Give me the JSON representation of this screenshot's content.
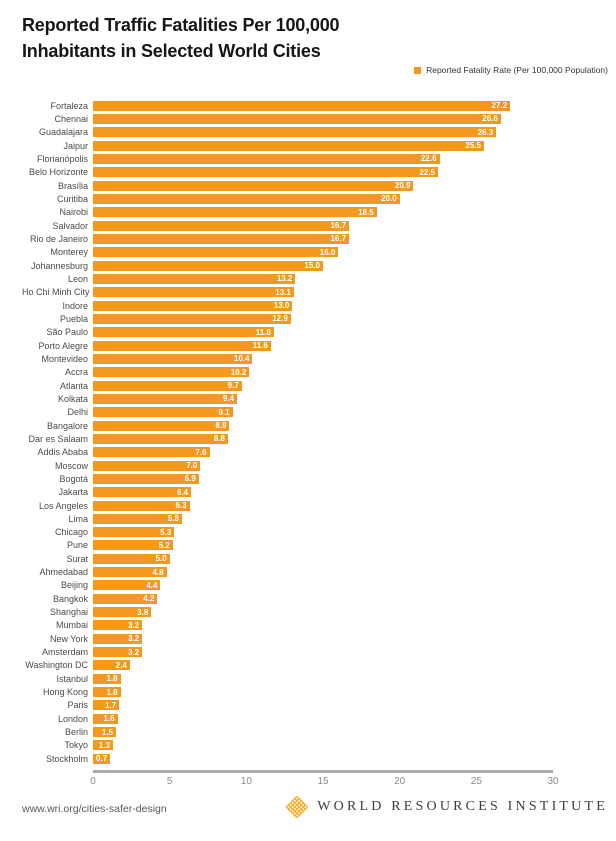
{
  "title": {
    "line1": "Reported Traffic Fatalities Per 100,000",
    "line2": "Inhabitants in Selected World Cities"
  },
  "legend": {
    "label": "Reported Fatality Rate (Per 100,000 Population)",
    "swatch_color": "#F6971E"
  },
  "footer": {
    "url": "www.wri.org/cities-safer-design",
    "org": "WORLD RESOURCES INSTITUTE",
    "logo_color": "#F2B233"
  },
  "chart_data": {
    "type": "bar",
    "orientation": "horizontal",
    "title": "Reported Traffic Fatalities Per 100,000 Inhabitants in Selected World Cities",
    "series_name": "Reported Fatality Rate (Per 100,000 Population)",
    "bar_color": "#F6971E",
    "value_label_color": "#ffffff",
    "xlim": [
      0,
      30
    ],
    "x_ticks": [
      0,
      5,
      10,
      15,
      20,
      25,
      30
    ],
    "grid": false,
    "legend_position": "top-right",
    "categories": [
      "Fortaleza",
      "Chennai",
      "Guadalajara",
      "Jaipur",
      "Florianópolis",
      "Belo Horizonte",
      "Brasília",
      "Curitiba",
      "Nairobi",
      "Salvador",
      "Rio de Janeiro",
      "Monterey",
      "Johannesburg",
      "Leon",
      "Ho Chi Minh City",
      "Indore",
      "Puebla",
      "São Paulo",
      "Porto Alegre",
      "Montevideo",
      "Accra",
      "Atlanta",
      "Kolkata",
      "Delhi",
      "Bangalore",
      "Dar es Salaam",
      "Addis Ababa",
      "Moscow",
      "Bogotá",
      "Jakarta",
      "Los Angeles",
      "Lima",
      "Chicago",
      "Pune",
      "Surat",
      "Ahmedabad",
      "Beijing",
      "Bangkok",
      "Shanghai",
      "Mumbai",
      "New York",
      "Amsterdam",
      "Washington DC",
      "Istanbul",
      "Hong Kong",
      "Paris",
      "London",
      "Berlin",
      "Tokyo",
      "Stockholm"
    ],
    "values": [
      27.2,
      26.6,
      26.3,
      25.5,
      22.6,
      22.5,
      20.9,
      20.0,
      18.5,
      16.7,
      16.7,
      16.0,
      15.0,
      13.2,
      13.1,
      13.0,
      12.9,
      11.8,
      11.6,
      10.4,
      10.2,
      9.7,
      9.4,
      9.1,
      8.9,
      8.8,
      7.6,
      7.0,
      6.9,
      6.4,
      6.3,
      5.8,
      5.3,
      5.2,
      5.0,
      4.8,
      4.4,
      4.2,
      3.8,
      3.2,
      3.2,
      3.2,
      2.4,
      1.8,
      1.8,
      1.7,
      1.6,
      1.5,
      1.3,
      0.7
    ]
  }
}
